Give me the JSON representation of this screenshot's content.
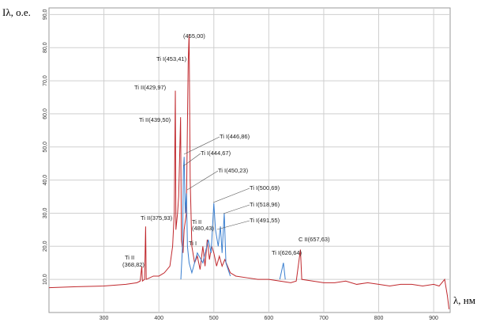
{
  "chart_data": {
    "type": "line",
    "ylabel": "Iλ, o.e.",
    "xlabel": "λ, нм",
    "xlim": [
      200,
      930
    ],
    "ylim": [
      0,
      92
    ],
    "xticks": [
      300,
      400,
      500,
      600,
      700,
      800,
      900
    ],
    "yticks": [
      {
        "value": 10,
        "label": "10,0"
      },
      {
        "value": 20,
        "label": "20,0"
      },
      {
        "value": 30,
        "label": "30,0"
      },
      {
        "value": 40,
        "label": "40,0"
      },
      {
        "value": 50,
        "label": "50,0"
      },
      {
        "value": 60,
        "label": "60,0"
      },
      {
        "value": 70,
        "label": "70,0"
      },
      {
        "value": 80,
        "label": "80,0"
      },
      {
        "value": 90,
        "label": "90,0"
      }
    ],
    "grid": true,
    "series": [
      {
        "color": "#c0282d",
        "x": [
          200,
          250,
          300,
          340,
          360,
          366,
          368.9,
          370,
          374,
          375.9,
          377,
          390,
          400,
          410,
          420,
          425,
          428,
          429.97,
          431,
          434,
          436,
          439.5,
          441,
          444,
          446,
          450,
          453.4,
          455,
          457,
          460,
          465,
          470,
          475,
          480,
          484,
          488,
          492,
          496,
          500,
          505,
          510,
          515,
          520,
          530,
          540,
          560,
          580,
          600,
          620,
          640,
          650,
          657.6,
          660,
          680,
          700,
          720,
          740,
          760,
          780,
          800,
          820,
          840,
          860,
          880,
          900,
          910,
          920,
          925,
          928
        ],
        "values": [
          7.5,
          7.8,
          8,
          8.5,
          9,
          9.5,
          14,
          9.5,
          10,
          26,
          10,
          11,
          11,
          12,
          14,
          20,
          30,
          67,
          25,
          30,
          35,
          59,
          22,
          18,
          25,
          30,
          76,
          84,
          40,
          20,
          15,
          17,
          13,
          20,
          14,
          22,
          16,
          20,
          18,
          14,
          17,
          14,
          16,
          12,
          11,
          10.5,
          10,
          10,
          9.5,
          9,
          9.5,
          19,
          10,
          9.5,
          9,
          9,
          9.5,
          8.5,
          9,
          8.5,
          8,
          8.5,
          8.5,
          8,
          8.5,
          8,
          10,
          5,
          1
        ]
      },
      {
        "color": "#3a7fd0",
        "x": [
          440,
          443,
          444.67,
          446,
          448,
          450.2,
          452,
          455,
          460,
          470,
          480,
          490,
          495,
          500,
          503,
          508,
          512,
          515,
          518.96,
          522,
          530,
          540,
          620,
          626.64,
          630
        ],
        "values": [
          10,
          20,
          43,
          47,
          30,
          36,
          20,
          15,
          12,
          18,
          15,
          22,
          18,
          33,
          25,
          20,
          26,
          18,
          30,
          15,
          11,
          null,
          10,
          15,
          10
        ]
      }
    ],
    "annotations": [
      "(455,00)",
      "Ti I(453,41)",
      "Ti II(429,97)",
      "Ti II(439,50)",
      "Ti I(446,86)",
      "Ti I(444,67)",
      "Ti I(450,23)",
      "Ti I(500,69)",
      "Ti I(518,96)",
      "Ti I(491,55)",
      "Ti II(375,93)",
      "Ti II",
      "(480,43)",
      "Ti I",
      "Ti II",
      "(368,82)",
      "Ti I(626,64)",
      "C II(657,63)"
    ]
  }
}
